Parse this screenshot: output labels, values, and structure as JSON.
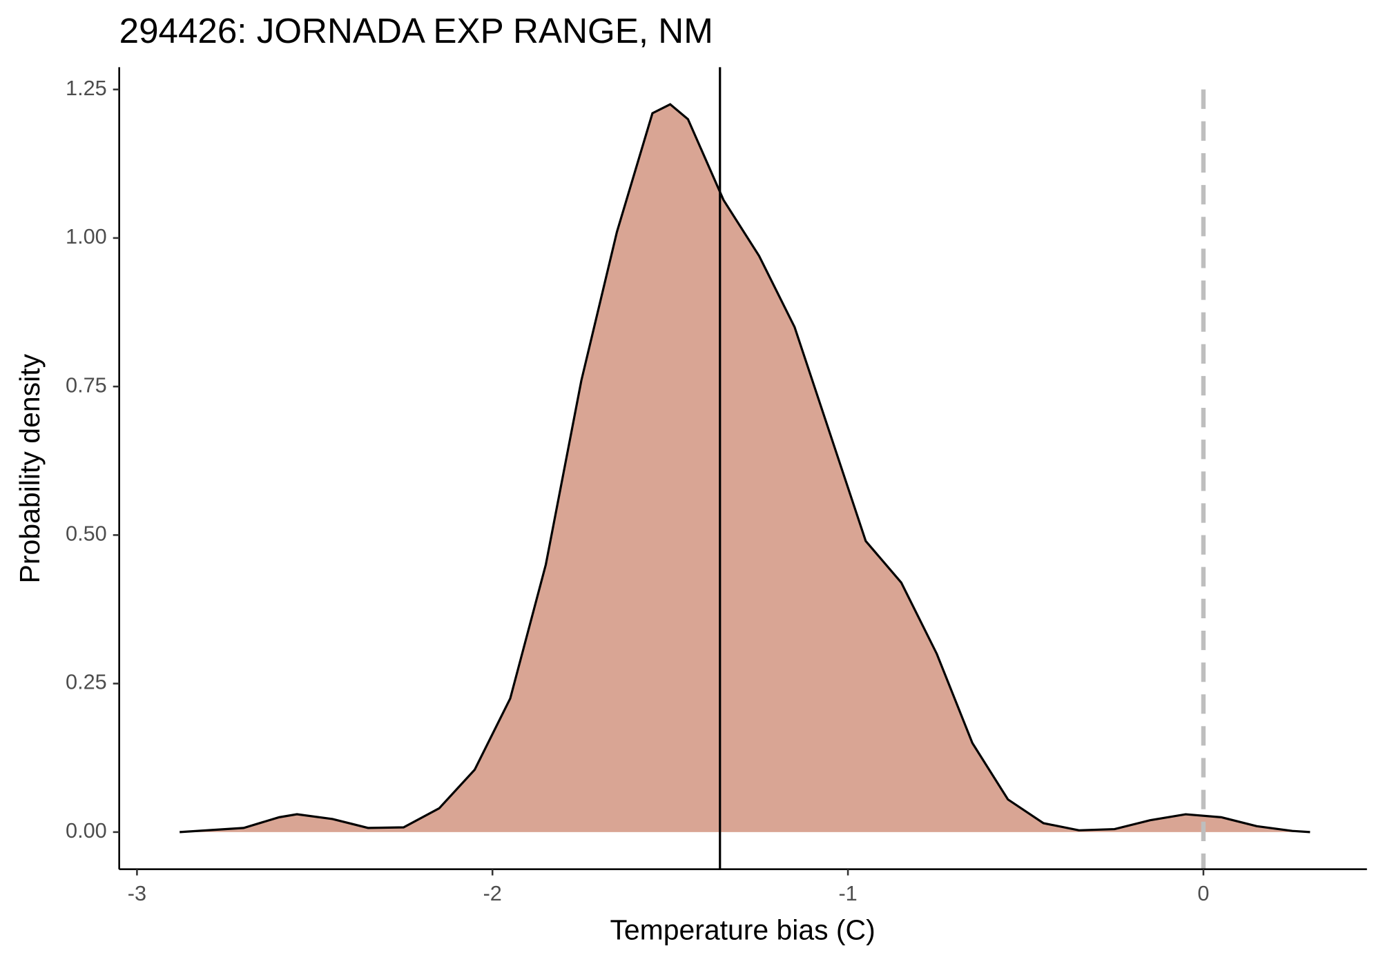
{
  "chart_data": {
    "type": "area",
    "title": "294426: JORNADA EXP RANGE, NM",
    "x_label": "Temperature bias (C)",
    "y_label": "Probability density",
    "x": [
      -2.88,
      -2.7,
      -2.6,
      -2.55,
      -2.45,
      -2.35,
      -2.25,
      -2.15,
      -2.05,
      -1.95,
      -1.85,
      -1.75,
      -1.65,
      -1.55,
      -1.5,
      -1.45,
      -1.35,
      -1.25,
      -1.15,
      -1.05,
      -0.95,
      -0.85,
      -0.75,
      -0.65,
      -0.55,
      -0.45,
      -0.35,
      -0.25,
      -0.15,
      -0.05,
      0.05,
      0.15,
      0.25,
      0.3
    ],
    "values": [
      0,
      0.007,
      0.025,
      0.03,
      0.022,
      0.007,
      0.008,
      0.04,
      0.105,
      0.225,
      0.45,
      0.76,
      1.01,
      1.21,
      1.225,
      1.2,
      1.064,
      0.97,
      0.85,
      0.67,
      0.49,
      0.42,
      0.3,
      0.15,
      0.055,
      0.015,
      0.003,
      0.005,
      0.02,
      0.03,
      0.025,
      0.01,
      0.002,
      0
    ],
    "color": "#d9a594",
    "line_color": "#000000",
    "vlines": [
      {
        "x": -1.36,
        "color": "#000000",
        "dashed": false
      },
      {
        "x": 0,
        "color": "#bebebe",
        "dashed": true
      }
    ],
    "xlim": [
      -3.05,
      0.46
    ],
    "ylim": [
      -0.0625,
      1.2875
    ],
    "xticks": [
      -3,
      -2,
      -1,
      0
    ],
    "yticks": [
      {
        "value": 0,
        "label": "0.00"
      },
      {
        "value": 0.25,
        "label": "0.25"
      },
      {
        "value": 0.5,
        "label": "0.50"
      },
      {
        "value": 0.75,
        "label": "0.75"
      },
      {
        "value": 1,
        "label": "1.00"
      },
      {
        "value": 1.25,
        "label": "1.25"
      }
    ],
    "grid": false
  }
}
